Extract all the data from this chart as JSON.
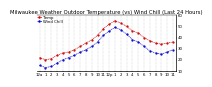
{
  "title": "Milwaukee Weather Outdoor Temperature (vs) Wind Chill (Last 24 Hours)",
  "temp": [
    22,
    20,
    21,
    24,
    26,
    27,
    29,
    32,
    35,
    38,
    42,
    48,
    52,
    55,
    53,
    50,
    46,
    44,
    40,
    37,
    35,
    34,
    35,
    36
  ],
  "windchill": [
    15,
    13,
    14,
    17,
    20,
    22,
    24,
    27,
    29,
    32,
    36,
    42,
    46,
    49,
    47,
    43,
    38,
    36,
    32,
    28,
    26,
    25,
    27,
    29
  ],
  "hours": [
    0,
    1,
    2,
    3,
    4,
    5,
    6,
    7,
    8,
    9,
    10,
    11,
    12,
    13,
    14,
    15,
    16,
    17,
    18,
    19,
    20,
    21,
    22,
    23
  ],
  "xlabels": [
    "12a",
    "1",
    "2",
    "3",
    "4",
    "5",
    "6",
    "7",
    "8",
    "9",
    "10",
    "11",
    "12p",
    "1",
    "2",
    "3",
    "4",
    "5",
    "6",
    "7",
    "8",
    "9",
    "10",
    "11"
  ],
  "temp_color": "#cc0000",
  "wind_color": "#0000cc",
  "ylim": [
    10,
    60
  ],
  "yticks": [
    10,
    20,
    30,
    40,
    50,
    60
  ],
  "bg_color": "#ffffff",
  "grid_color": "#aaaaaa",
  "title_fontsize": 3.8,
  "tick_fontsize": 2.8,
  "legend_fontsize": 2.8
}
